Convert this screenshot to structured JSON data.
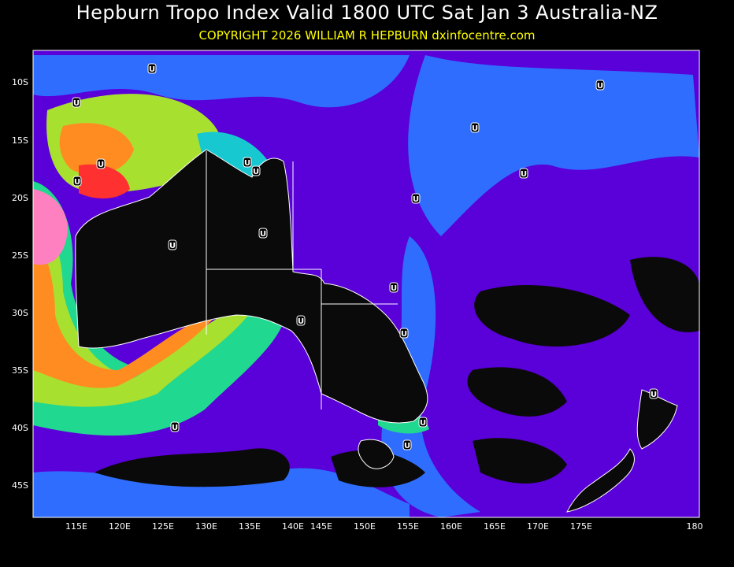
{
  "header": {
    "title": "Hepburn Tropo Index Valid 1800 UTC Sat Jan 3 Australia-NZ",
    "copyright": "COPYRIGHT 2026  WILLIAM R HEPBURN  dxinfocentre.com"
  },
  "map": {
    "lon_ticks": [
      "115E",
      "120E",
      "125E",
      "130E",
      "135E",
      "140E",
      "145E",
      "150E",
      "155E",
      "160E",
      "165E",
      "170E",
      "175E",
      "180"
    ],
    "lat_ticks": [
      "10S",
      "15S",
      "20S",
      "25S",
      "30S",
      "35S",
      "40S",
      "45S"
    ],
    "marker_label": "U",
    "colors": {
      "land": "#0a0a0a",
      "indigo": "#5a00d8",
      "violet": "#7a1cff",
      "blue": "#2f6dff",
      "cyan": "#18c8d0",
      "green": "#20d890",
      "lime": "#a8e030",
      "yellow": "#e8e020",
      "orange": "#ff8c20",
      "red": "#ff3030",
      "pink": "#ff80c0",
      "coast": "#ffffff"
    }
  }
}
